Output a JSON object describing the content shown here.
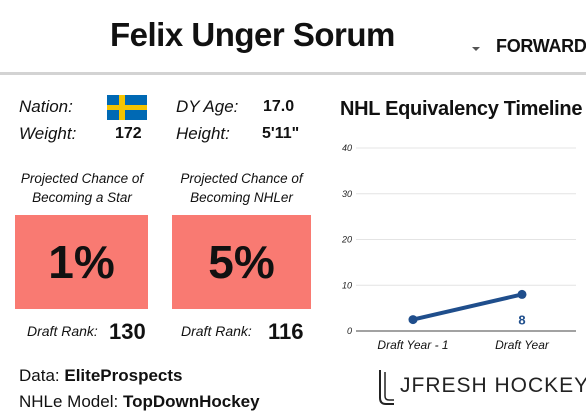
{
  "player": {
    "name": "Felix Unger Sorum",
    "position": "FORWARD"
  },
  "bio": {
    "nation_label": "Nation:",
    "nation": "Sweden",
    "dy_age_label": "DY Age:",
    "dy_age": "17.0",
    "weight_label": "Weight:",
    "weight": "172",
    "height_label": "Height:",
    "height": "5'11\""
  },
  "projections": [
    {
      "title_line1": "Projected Chance of",
      "title_line2": "Becoming a Star",
      "value": "1%",
      "rank_label": "Draft Rank:",
      "rank": "130"
    },
    {
      "title_line1": "Projected Chance of",
      "title_line2": "Becoming NHLer",
      "value": "5%",
      "rank_label": "Draft Rank:",
      "rank": "116"
    }
  ],
  "sources": {
    "data_label": "Data:",
    "data_source": "EliteProspects",
    "model_label": "NHLe Model:",
    "model_source": "TopDownHockey"
  },
  "logo": {
    "text": "JFRESH HOCKEY"
  },
  "colors": {
    "box": "#f97a72",
    "line": "#1f4e8c",
    "flag_blue": "#0069b4",
    "flag_yellow": "#f5c400"
  },
  "chart_data": {
    "type": "line",
    "title": "NHL Equivalency Timeline",
    "categories": [
      "Draft Year - 1",
      "Draft Year"
    ],
    "series": [
      {
        "values": [
          2.5,
          8
        ]
      }
    ],
    "data_labels": [
      "",
      "8"
    ],
    "ylim": [
      0,
      40
    ],
    "yticks": [
      0,
      10,
      20,
      30,
      40
    ],
    "grid": true,
    "legend": "none"
  }
}
